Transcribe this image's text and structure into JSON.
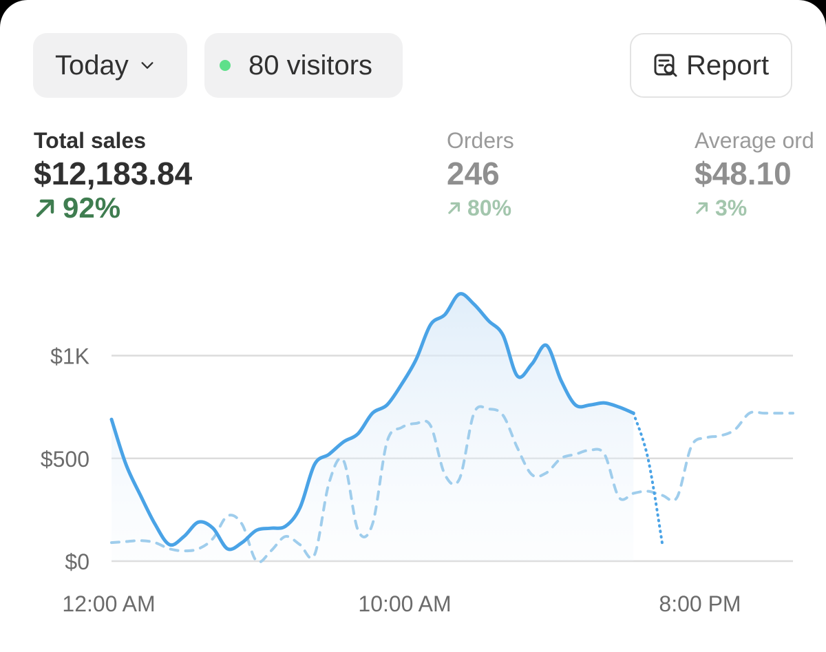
{
  "controls": {
    "date_range": "Today",
    "visitors": "80 visitors",
    "report": "Report"
  },
  "metrics": [
    {
      "label": "Total sales",
      "value": "$12,183.84",
      "delta": "92%"
    },
    {
      "label": "Orders",
      "value": "246",
      "delta": "80%"
    },
    {
      "label": "Average ord",
      "value": "$48.10",
      "delta": "3%"
    }
  ],
  "colors": {
    "current": "#4aa3e6",
    "comparison": "#9fcdec",
    "positive": "#3f7d50",
    "visitors_dot": "#5ee08a"
  },
  "chart_data": {
    "type": "line",
    "x_tick_labels": [
      "12:00 AM",
      "10:00 AM",
      "8:00 PM"
    ],
    "y_tick_labels": [
      "$0",
      "$500",
      "$1K"
    ],
    "y_ticks": [
      0,
      500,
      1000
    ],
    "ylim": [
      0,
      1300
    ],
    "grid": true,
    "series": [
      {
        "role": "current",
        "style": "solid",
        "x": [
          0,
          0.5,
          1,
          1.5,
          2,
          2.5,
          3,
          3.5,
          4,
          4.5,
          5,
          5.5,
          6,
          6.5,
          7,
          7.5,
          8,
          8.5,
          9,
          9.5,
          10,
          10.5,
          11,
          11.5,
          12,
          12.5,
          13,
          13.5,
          14,
          14.5,
          15,
          15.5,
          16,
          16.5,
          17,
          17.5,
          18,
          18.5,
          19
        ],
        "y": [
          690,
          470,
          320,
          180,
          80,
          120,
          190,
          160,
          60,
          90,
          150,
          160,
          170,
          260,
          470,
          520,
          580,
          620,
          720,
          760,
          860,
          980,
          1150,
          1200,
          1300,
          1250,
          1170,
          1100,
          900,
          960,
          1050,
          880,
          760,
          760,
          770,
          750,
          720,
          500,
          80
        ]
      },
      {
        "role": "comparison",
        "style": "dashed",
        "x": [
          0,
          0.5,
          1,
          1.5,
          2,
          2.5,
          3,
          3.5,
          4,
          4.5,
          5,
          5.5,
          6,
          6.5,
          7,
          7.5,
          8,
          8.5,
          9,
          9.5,
          10,
          10.5,
          11,
          11.5,
          12,
          12.5,
          13,
          13.5,
          14,
          14.5,
          15,
          15.5,
          16,
          16.5,
          17,
          17.5,
          18,
          18.5,
          19,
          19.5,
          20,
          20.5,
          21,
          21.5,
          22,
          22.5,
          23,
          23.5
        ],
        "y": [
          90,
          95,
          100,
          90,
          60,
          50,
          60,
          110,
          220,
          180,
          0,
          50,
          120,
          80,
          30,
          380,
          490,
          150,
          180,
          580,
          650,
          670,
          660,
          420,
          400,
          720,
          740,
          710,
          550,
          420,
          430,
          500,
          520,
          540,
          520,
          310,
          330,
          340,
          320,
          310,
          560,
          600,
          610,
          640,
          720,
          720,
          720,
          720
        ]
      }
    ]
  }
}
